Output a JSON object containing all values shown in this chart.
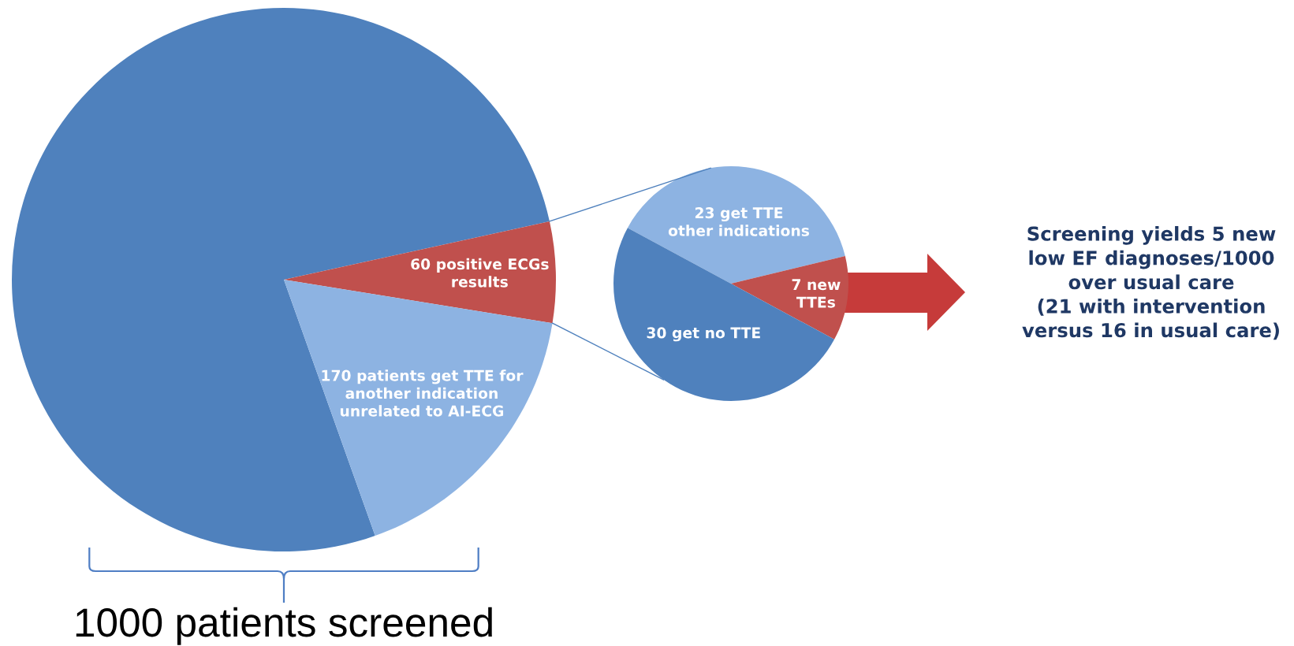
{
  "chart_data": [
    {
      "type": "pie",
      "categories": [
        null,
        "60 positive ECGs\nresults",
        "170 patients get TTE for\nanother indication\nunrelated to AI-ECG"
      ],
      "values": [
        770,
        60,
        170
      ],
      "colors": [
        "#4f81bd",
        "#c0504d",
        "#8db3e2"
      ],
      "annotations": [
        "1000 patients screened"
      ]
    },
    {
      "type": "pie",
      "categories": [
        "23 get TTE\nother indications",
        "7 new\nTTEs",
        "30 get no TTE"
      ],
      "values": [
        23,
        7,
        30
      ],
      "colors": [
        "#8db3e2",
        "#c0504d",
        "#4f81bd"
      ]
    },
    {
      "type": "other",
      "annotations": [
        "Screening yields 5 new\nlow EF diagnoses/1000\nover usual care\n(21 with intervention\nversus 16 in usual care)"
      ]
    }
  ]
}
